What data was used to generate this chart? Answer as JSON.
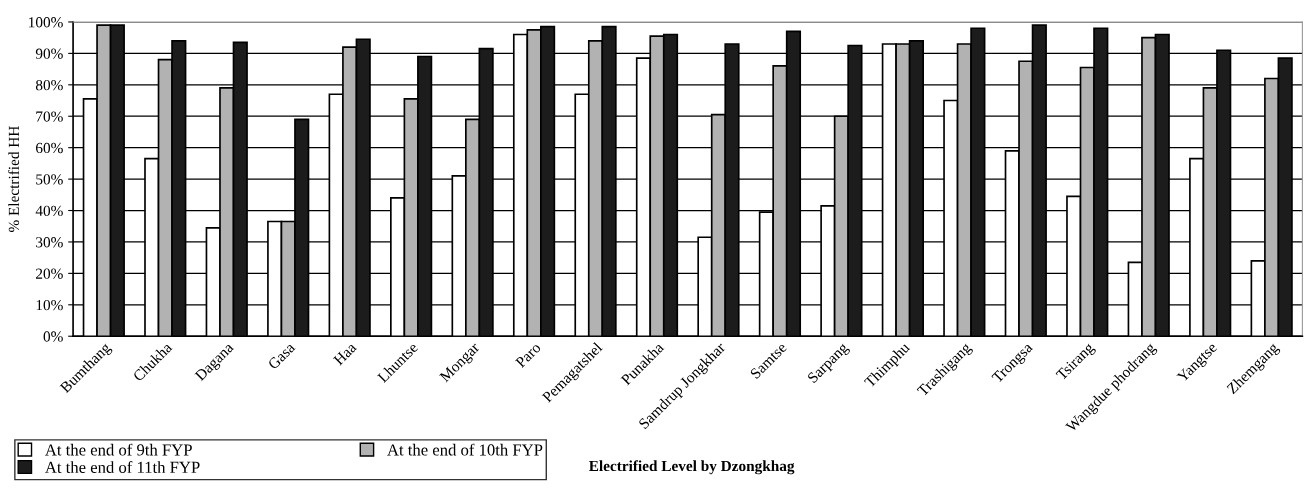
{
  "chart_data": {
    "type": "bar",
    "xlabel": "Electrified Level by Dzongkhag",
    "ylabel": "% Electrified HH",
    "categories": [
      "Bumthang",
      "Chukha",
      "Dagana",
      "Gasa",
      "Haa",
      "Lhuntse",
      "Mongar",
      "Paro",
      "Pemagatshel",
      "Punakha",
      "Samdrup Jongkhar",
      "Samtse",
      "Sarpang",
      "Thimphu",
      "Trashigang",
      "Trongsa",
      "Tsirang",
      "Wangdue phodrang",
      "Yangtse",
      "Zhemgang"
    ],
    "series": [
      {
        "name": "At the end of 9th FYP",
        "color": "#ffffff",
        "values": [
          75.5,
          56.5,
          34.5,
          36.5,
          77,
          44,
          51,
          96,
          77,
          88.5,
          31.5,
          39.5,
          41.5,
          93,
          75,
          59,
          44.5,
          23.5,
          56.5,
          24
        ]
      },
      {
        "name": "At the end of 10th FYP",
        "color": "#b2b2b2",
        "values": [
          99,
          88,
          79,
          36.5,
          92,
          75.5,
          69,
          97.5,
          94,
          95.5,
          70.5,
          86,
          70,
          93,
          93,
          87.5,
          85.5,
          95,
          79,
          82
        ]
      },
      {
        "name": "At the end of 11th FYP",
        "color": "#1c1c1c",
        "values": [
          99,
          94,
          93.5,
          69,
          94.5,
          89,
          91.5,
          98.5,
          98.5,
          96,
          93,
          97,
          92.5,
          94,
          98,
          99,
          98,
          96,
          91,
          88.5
        ]
      }
    ],
    "ylim": [
      0,
      100
    ],
    "yticks": [
      {
        "value": 0,
        "label": "0%"
      },
      {
        "value": 10,
        "label": "10%"
      },
      {
        "value": 20,
        "label": "20%"
      },
      {
        "value": 30,
        "label": "30%"
      },
      {
        "value": 40,
        "label": "40%"
      },
      {
        "value": 50,
        "label": "50%"
      },
      {
        "value": 60,
        "label": "60%"
      },
      {
        "value": 70,
        "label": "70%"
      },
      {
        "value": 80,
        "label": "80%"
      },
      {
        "value": 90,
        "label": "90%"
      },
      {
        "value": 100,
        "label": "100%"
      }
    ],
    "grid": "y",
    "legend": "bottom left"
  }
}
